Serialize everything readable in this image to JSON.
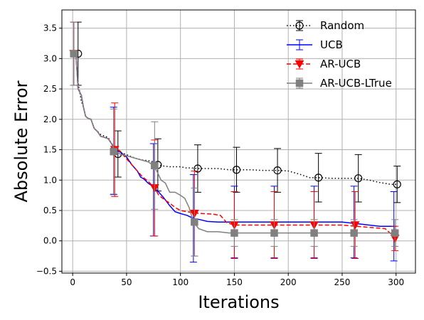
{
  "chart_data": {
    "type": "line",
    "title": "",
    "xlabel": "Iterations",
    "ylabel": "Absolute Error",
    "xlim": [
      -10,
      318
    ],
    "ylim": [
      -0.53,
      3.8
    ],
    "xticks": [
      0,
      50,
      100,
      150,
      200,
      250,
      300
    ],
    "yticks": [
      -0.5,
      0.0,
      0.5,
      1.0,
      1.5,
      2.0,
      2.5,
      3.0,
      3.5
    ],
    "grid": true,
    "legend_position": "top-right",
    "series": [
      {
        "name": "Random",
        "color": "#000000",
        "line_style": "dotted",
        "marker": "open-circle",
        "x": [
          1,
          3,
          5,
          8,
          10,
          12,
          14,
          17,
          20,
          23,
          26,
          30,
          33,
          36,
          39,
          42,
          45,
          50,
          55,
          60,
          65,
          70,
          75,
          79,
          85,
          90,
          95,
          100,
          105,
          110,
          116,
          125,
          135,
          145,
          152,
          165,
          175,
          190,
          200,
          210,
          220,
          228,
          240,
          250,
          265,
          275,
          285,
          295,
          301
        ],
        "y": [
          3.1,
          3.05,
          2.6,
          2.3,
          2.2,
          2.05,
          2.02,
          2.0,
          1.85,
          1.8,
          1.75,
          1.72,
          1.7,
          1.6,
          1.55,
          1.5,
          1.45,
          1.42,
          1.38,
          1.35,
          1.33,
          1.32,
          1.3,
          1.25,
          1.23,
          1.22,
          1.22,
          1.22,
          1.2,
          1.2,
          1.19,
          1.19,
          1.19,
          1.17,
          1.17,
          1.17,
          1.16,
          1.16,
          1.15,
          1.1,
          1.04,
          1.04,
          1.03,
          1.03,
          1.03,
          1.0,
          0.96,
          0.93,
          0.93
        ],
        "markers": [
          {
            "x": 5,
            "y": 3.08,
            "err": 0.52
          },
          {
            "x": 42,
            "y": 1.43,
            "err": 0.38
          },
          {
            "x": 79,
            "y": 1.25,
            "err": 0.43
          },
          {
            "x": 116,
            "y": 1.19,
            "err": 0.39
          },
          {
            "x": 152,
            "y": 1.17,
            "err": 0.37
          },
          {
            "x": 190,
            "y": 1.16,
            "err": 0.36
          },
          {
            "x": 228,
            "y": 1.04,
            "err": 0.4
          },
          {
            "x": 265,
            "y": 1.03,
            "err": 0.39
          },
          {
            "x": 301,
            "y": 0.93,
            "err": 0.3
          }
        ]
      },
      {
        "name": "UCB",
        "color": "#0000ff",
        "line_style": "solid",
        "marker": "none",
        "x": [
          1,
          3,
          5,
          8,
          10,
          12,
          14,
          17,
          20,
          23,
          26,
          30,
          33,
          36,
          39,
          42,
          45,
          50,
          55,
          60,
          63,
          66,
          70,
          74,
          77,
          80,
          84,
          90,
          95,
          100,
          106,
          112,
          118,
          125,
          135,
          140,
          150,
          160,
          200,
          250,
          285,
          300
        ],
        "y": [
          3.1,
          3.08,
          2.5,
          2.4,
          2.2,
          2.05,
          2.02,
          2.0,
          1.85,
          1.8,
          1.72,
          1.7,
          1.68,
          1.6,
          1.52,
          1.48,
          1.45,
          1.38,
          1.25,
          1.15,
          1.05,
          1.02,
          0.95,
          0.9,
          0.85,
          0.8,
          0.72,
          0.58,
          0.48,
          0.45,
          0.42,
          0.37,
          0.35,
          0.32,
          0.31,
          0.31,
          0.31,
          0.31,
          0.31,
          0.31,
          0.24,
          0.24
        ],
        "markers": [
          {
            "x": 1,
            "y": 3.08,
            "err": 0.52
          },
          {
            "x": 38,
            "y": 1.48,
            "err": 0.72
          },
          {
            "x": 75,
            "y": 0.84,
            "err": 0.76
          },
          {
            "x": 112,
            "y": 0.37,
            "err": 0.72
          },
          {
            "x": 150,
            "y": 0.31,
            "err": 0.59
          },
          {
            "x": 187,
            "y": 0.31,
            "err": 0.59
          },
          {
            "x": 224,
            "y": 0.31,
            "err": 0.59
          },
          {
            "x": 261,
            "y": 0.31,
            "err": 0.59
          },
          {
            "x": 298,
            "y": 0.24,
            "err": 0.57
          }
        ]
      },
      {
        "name": "AR-UCB",
        "color": "#ff0000",
        "line_style": "dashed",
        "marker": "filled-down-triangle",
        "x": [
          1,
          3,
          5,
          8,
          10,
          12,
          14,
          17,
          20,
          23,
          26,
          30,
          33,
          36,
          39,
          42,
          45,
          50,
          55,
          60,
          65,
          70,
          76,
          80,
          85,
          90,
          95,
          100,
          106,
          113,
          120,
          130,
          137,
          143,
          150,
          200,
          250,
          290,
          300
        ],
        "y": [
          3.1,
          3.08,
          2.5,
          2.4,
          2.2,
          2.05,
          2.02,
          2.0,
          1.85,
          1.8,
          1.72,
          1.7,
          1.68,
          1.6,
          1.52,
          1.5,
          1.45,
          1.35,
          1.25,
          1.15,
          1.05,
          0.98,
          0.87,
          0.75,
          0.68,
          0.62,
          0.55,
          0.5,
          0.48,
          0.46,
          0.45,
          0.44,
          0.42,
          0.3,
          0.26,
          0.26,
          0.26,
          0.2,
          0.04
        ],
        "markers": [
          {
            "x": 1,
            "y": 3.08,
            "err": 0.52
          },
          {
            "x": 39,
            "y": 1.5,
            "err": 0.77
          },
          {
            "x": 76,
            "y": 0.87,
            "err": 0.79
          },
          {
            "x": 113,
            "y": 0.45,
            "err": 0.7
          },
          {
            "x": 150,
            "y": 0.26,
            "err": 0.55
          },
          {
            "x": 187,
            "y": 0.26,
            "err": 0.55
          },
          {
            "x": 224,
            "y": 0.26,
            "err": 0.55
          },
          {
            "x": 262,
            "y": 0.26,
            "err": 0.55
          },
          {
            "x": 299,
            "y": 0.04,
            "err": 0.2
          }
        ]
      },
      {
        "name": "AR-UCB-LTrue",
        "color": "#808080",
        "line_style": "solid",
        "marker": "filled-square",
        "x": [
          1,
          3,
          5,
          8,
          10,
          12,
          14,
          17,
          20,
          23,
          26,
          30,
          33,
          36,
          39,
          42,
          45,
          50,
          60,
          70,
          75,
          78,
          82,
          86,
          90,
          95,
          100,
          104,
          108,
          112,
          117,
          125,
          135,
          145,
          150,
          200,
          250,
          300
        ],
        "y": [
          3.1,
          3.08,
          2.5,
          2.4,
          2.2,
          2.05,
          2.02,
          2.0,
          1.85,
          1.8,
          1.72,
          1.7,
          1.68,
          1.6,
          1.48,
          1.45,
          1.42,
          1.4,
          1.35,
          1.3,
          1.24,
          1.15,
          1.0,
          0.95,
          0.8,
          0.8,
          0.75,
          0.7,
          0.55,
          0.31,
          0.2,
          0.15,
          0.15,
          0.13,
          0.13,
          0.13,
          0.13,
          0.13
        ],
        "markers": [
          {
            "x": 1,
            "y": 3.08,
            "err": 0.52
          },
          {
            "x": 38,
            "y": 1.47,
            "err": 0.7
          },
          {
            "x": 76,
            "y": 1.24,
            "err": 0.72
          },
          {
            "x": 113,
            "y": 0.31,
            "err": 0.56
          },
          {
            "x": 150,
            "y": 0.13,
            "err": 0.22
          },
          {
            "x": 187,
            "y": 0.13,
            "err": 0.22
          },
          {
            "x": 224,
            "y": 0.13,
            "err": 0.22
          },
          {
            "x": 261,
            "y": 0.13,
            "err": 0.22
          },
          {
            "x": 299,
            "y": 0.13,
            "err": 0.22
          }
        ]
      }
    ]
  }
}
